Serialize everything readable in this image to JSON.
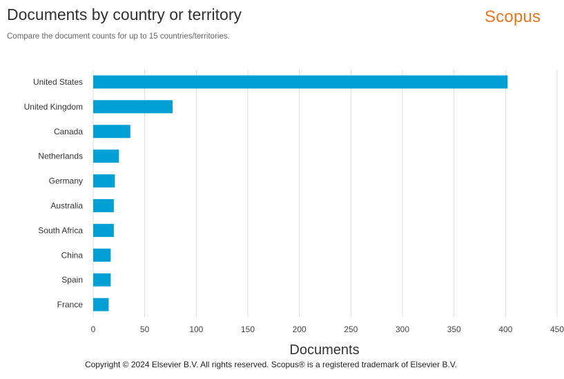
{
  "header": {
    "title": "Documents by country or territory",
    "subtitle": "Compare the document counts for up to 15 countries/territories.",
    "brand": "Scopus"
  },
  "footer": {
    "copyright": "Copyright © 2024 Elsevier B.V. All rights reserved. Scopus® is a registered trademark of Elsevier B.V."
  },
  "chart_data": {
    "type": "bar",
    "orientation": "horizontal",
    "title": "Documents by country or territory",
    "subtitle": "Compare the document counts for up to 15 countries/territories.",
    "xlabel": "Documents",
    "ylabel": "",
    "xlim": [
      0,
      450
    ],
    "xticks": [
      0,
      50,
      100,
      150,
      200,
      250,
      300,
      350,
      400,
      450
    ],
    "categories": [
      "United States",
      "United Kingdom",
      "Canada",
      "Netherlands",
      "Germany",
      "Australia",
      "South Africa",
      "China",
      "Spain",
      "France"
    ],
    "values": [
      402,
      77,
      36,
      25,
      21,
      20,
      20,
      17,
      17,
      15
    ],
    "bar_color": "#009fd4",
    "grid_color": "#dddddd",
    "grid": true,
    "legend": "none"
  }
}
